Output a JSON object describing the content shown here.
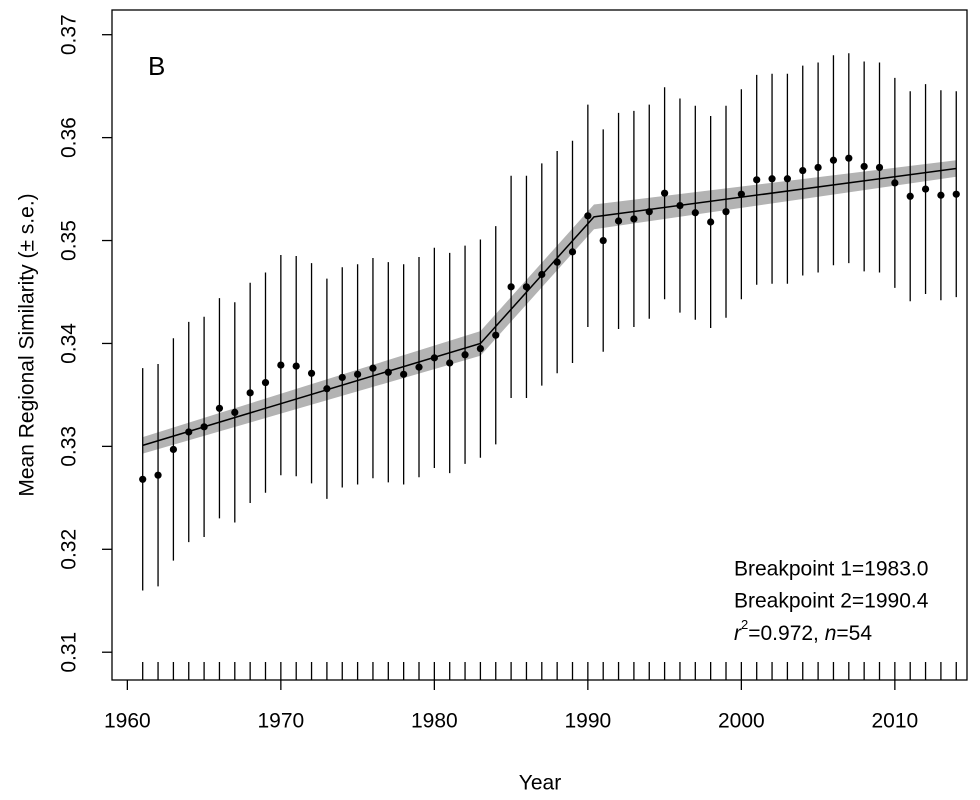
{
  "chart_data": {
    "type": "scatter",
    "panel_label": "B",
    "x_label": "Year",
    "y_label": "Mean Regional Similarity (± s.e.)",
    "xlim": [
      1959,
      2014.7
    ],
    "ylim": [
      0.3073,
      0.3724
    ],
    "xticks": [
      1960,
      1970,
      1980,
      1990,
      2000,
      2010
    ],
    "yticks": [
      0.31,
      0.32,
      0.33,
      0.34,
      0.35,
      0.36,
      0.37
    ],
    "color": "#000000",
    "band_color": "#b3b3b3",
    "x": [
      1961,
      1962,
      1963,
      1964,
      1965,
      1966,
      1967,
      1968,
      1969,
      1970,
      1971,
      1972,
      1973,
      1974,
      1975,
      1976,
      1977,
      1978,
      1979,
      1980,
      1981,
      1982,
      1983,
      1984,
      1985,
      1986,
      1987,
      1988,
      1989,
      1990,
      1991,
      1992,
      1993,
      1994,
      1995,
      1996,
      1997,
      1998,
      1999,
      2000,
      2001,
      2002,
      2003,
      2004,
      2005,
      2006,
      2007,
      2008,
      2009,
      2010,
      2011,
      2012,
      2013,
      2014
    ],
    "values": [
      0.3268,
      0.3272,
      0.3297,
      0.3314,
      0.3319,
      0.3337,
      0.3333,
      0.3352,
      0.3362,
      0.3379,
      0.3378,
      0.3371,
      0.3356,
      0.3367,
      0.337,
      0.3376,
      0.3372,
      0.337,
      0.3377,
      0.3386,
      0.3381,
      0.3389,
      0.3395,
      0.3408,
      0.3455,
      0.3455,
      0.3467,
      0.3479,
      0.3489,
      0.3524,
      0.35,
      0.3519,
      0.3521,
      0.3528,
      0.3546,
      0.3534,
      0.3527,
      0.3518,
      0.3528,
      0.3545,
      0.3559,
      0.356,
      0.356,
      0.3568,
      0.3571,
      0.3578,
      0.358,
      0.3572,
      0.3571,
      0.3556,
      0.3543,
      0.355,
      0.3544,
      0.3545
    ],
    "errors": [
      0.0108,
      0.0108,
      0.0108,
      0.0107,
      0.0107,
      0.0107,
      0.0107,
      0.0107,
      0.0107,
      0.0107,
      0.0107,
      0.0107,
      0.0107,
      0.0107,
      0.0107,
      0.0107,
      0.0107,
      0.0107,
      0.0107,
      0.0107,
      0.0107,
      0.0106,
      0.0106,
      0.0106,
      0.0108,
      0.0108,
      0.0108,
      0.0108,
      0.0108,
      0.0108,
      0.0108,
      0.0105,
      0.0105,
      0.0104,
      0.0103,
      0.0104,
      0.0104,
      0.0103,
      0.0103,
      0.0102,
      0.0102,
      0.0102,
      0.0102,
      0.0102,
      0.0102,
      0.0102,
      0.0102,
      0.0102,
      0.0102,
      0.0102,
      0.0102,
      0.0102,
      0.0102,
      0.01
    ],
    "fit": {
      "x": [
        1961,
        1983,
        1990.4,
        2014
      ],
      "values": [
        0.3301,
        0.34,
        0.3523,
        0.357
      ],
      "lower": [
        0.3293,
        0.3388,
        0.3511,
        0.3562
      ],
      "upper": [
        0.3309,
        0.3412,
        0.3535,
        0.3578
      ]
    },
    "annotations": [
      "Breakpoint 1=1983.0",
      "Breakpoint 2=1990.4"
    ],
    "stats_text": [
      "r",
      "2",
      "=0.972, ",
      "n",
      "=54"
    ]
  }
}
